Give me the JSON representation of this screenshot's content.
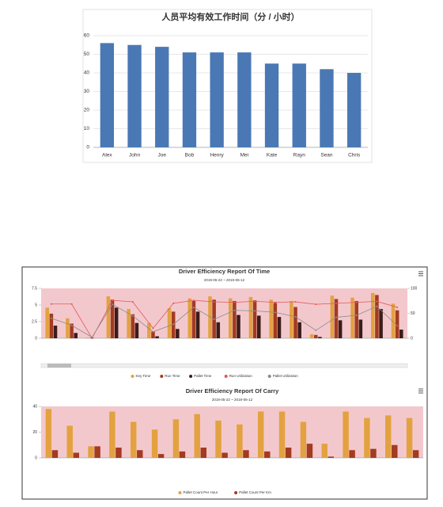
{
  "chart_data": [
    {
      "type": "bar",
      "title": "人员平均有效工作时间（分 / 小时）",
      "categories": [
        "Alex",
        "John",
        "Joe",
        "Bob",
        "Henry",
        "Mei",
        "Kate",
        "Rayn",
        "Sean",
        "Chris"
      ],
      "values": [
        56,
        55,
        54,
        51,
        51,
        51,
        45,
        45,
        42,
        40
      ],
      "color": "#4a78b4",
      "ylim": [
        0,
        60
      ],
      "yticks": [
        0,
        10,
        20,
        30,
        40,
        50,
        60
      ],
      "grid": true
    },
    {
      "type": "bar",
      "title": "Driver Efficiency Report Of Time",
      "subtitle": "2019-05-22 ~ 2019-06-12",
      "categories": [
        null,
        null,
        null,
        null,
        null,
        null,
        null,
        null,
        null,
        null,
        null,
        null,
        null,
        null,
        null,
        null,
        null,
        null
      ],
      "series": [
        {
          "name": "Key Time",
          "color": "#e3a23f",
          "values": [
            4.6,
            3.0,
            0.1,
            6.3,
            4.4,
            2.3,
            4.5,
            6.0,
            6.3,
            6.0,
            6.2,
            5.8,
            5.6,
            0.6,
            6.4,
            6.1,
            6.8,
            5.2
          ]
        },
        {
          "name": "Run Time",
          "color": "#a33a22",
          "values": [
            3.7,
            2.2,
            0.1,
            5.8,
            3.6,
            1.0,
            4.0,
            5.6,
            5.8,
            5.6,
            5.7,
            5.3,
            4.7,
            0.5,
            5.9,
            5.6,
            6.5,
            4.2
          ]
        },
        {
          "name": "Pallet Time",
          "color": "#3a1d18",
          "values": [
            1.9,
            0.8,
            0,
            4.6,
            2.3,
            0.3,
            1.4,
            4.0,
            2.4,
            3.5,
            3.4,
            3.2,
            2.4,
            0.2,
            2.7,
            2.8,
            4.4,
            1.3
          ]
        },
        {
          "name": "Run Utilization",
          "color": "#e0575b",
          "type": "line",
          "axis": "y2",
          "values": [
            68.6,
            68.6,
            0,
            76,
            73,
            20,
            70,
            76,
            73,
            72,
            74,
            72,
            73,
            68,
            70,
            72,
            74,
            62
          ]
        },
        {
          "name": "Pallet Utilization",
          "color": "#8a8a8a",
          "type": "line",
          "axis": "y2",
          "values": [
            40,
            26,
            2,
            68,
            45,
            13,
            28,
            62,
            38,
            56,
            55,
            52,
            43,
            16,
            42,
            46,
            64,
            25
          ]
        }
      ],
      "ylim": [
        0,
        7.5
      ],
      "yticks": [
        0,
        2.5,
        5,
        7.5
      ],
      "y2lim": [
        0,
        100
      ],
      "y2ticks": [
        0,
        50,
        100
      ],
      "background": "#f3c8cd"
    },
    {
      "type": "bar",
      "title": "Driver Efficiency Report Of Carry",
      "subtitle": "2019-05-22 ~ 2019-06-12",
      "categories": [
        null,
        null,
        null,
        null,
        null,
        null,
        null,
        null,
        null,
        null,
        null,
        null,
        null,
        null,
        null,
        null,
        null,
        null
      ],
      "series": [
        {
          "name": "Pallet Count Per Hour",
          "color": "#e3a23f",
          "values": [
            38,
            25,
            9,
            36,
            28,
            22,
            30,
            34,
            29,
            26,
            36,
            36,
            28,
            11,
            36,
            31,
            33,
            31
          ]
        },
        {
          "name": "Pallet Count Per Km",
          "color": "#a33a22",
          "values": [
            6,
            4,
            9,
            8,
            6,
            3,
            5,
            8,
            4,
            6,
            5,
            8,
            11,
            1,
            6,
            7,
            10,
            6
          ]
        }
      ],
      "ylim": [
        0,
        40
      ],
      "yticks": [
        0,
        20,
        40
      ],
      "background": "#f3c8cd"
    }
  ]
}
